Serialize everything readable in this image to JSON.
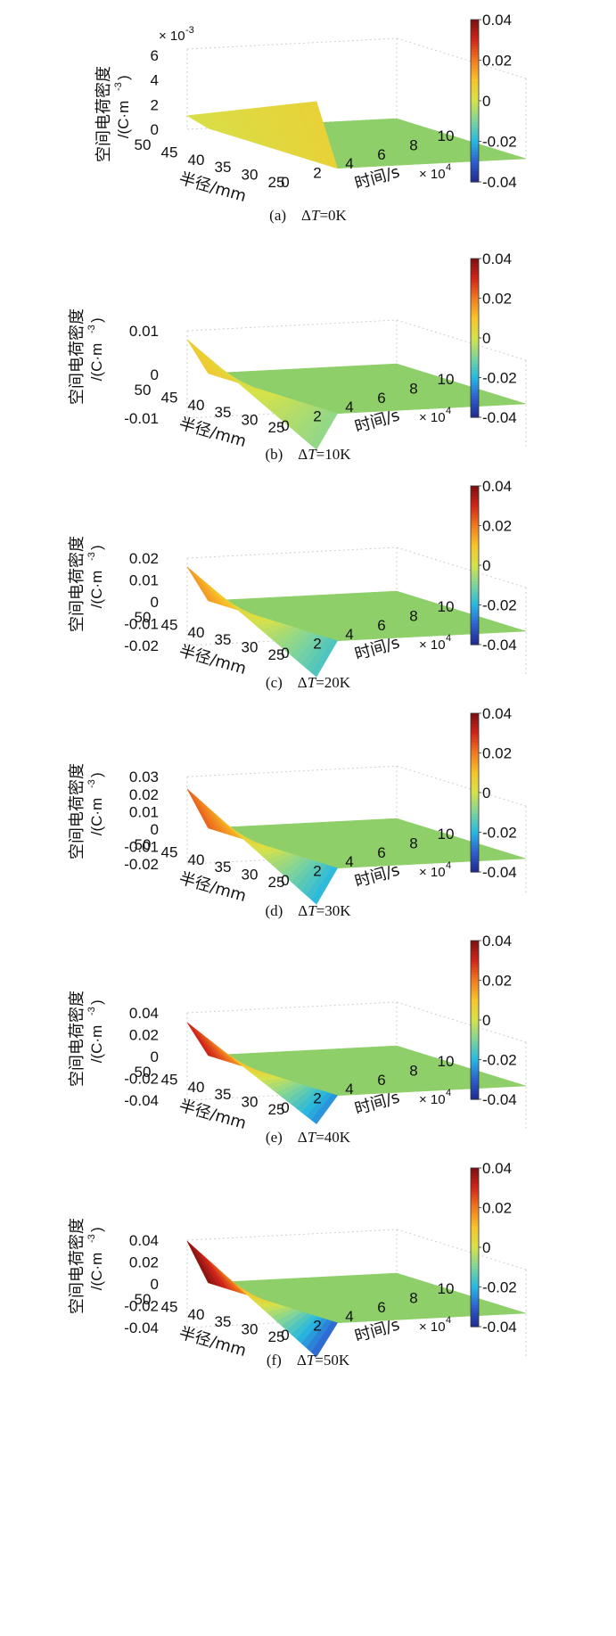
{
  "chart_data": [
    {
      "type": "surface3d",
      "label": "(a)",
      "delta_t_value": "0K",
      "zlabel_line1": "空间电荷密度",
      "zlabel_line2": "/(C·m",
      "zlabel_exp": "-3",
      "zlabel_close": ")",
      "xlabel": "时间/s",
      "ylabel": "半径/mm",
      "x_multiplier": "× 10",
      "x_multiplier_exp": "4",
      "z_multiplier": "× 10",
      "z_multiplier_exp": "-3",
      "x_ticks": [
        "0",
        "2",
        "4",
        "6",
        "8",
        "10"
      ],
      "y_ticks": [
        "50",
        "45",
        "40",
        "35",
        "30",
        "25"
      ],
      "z_ticks": [
        "6",
        "4",
        "2",
        "0"
      ],
      "zlim": [
        0,
        0.0065
      ],
      "colorbar_ticks": [
        "0.04",
        "0.02",
        "0",
        "-0.02",
        "-0.04"
      ],
      "colorbar_range": [
        -0.04,
        0.04
      ],
      "surface": {
        "time_range": [
          0,
          10
        ],
        "radius_range": [
          25,
          50
        ],
        "outer_edge_at_t0": {
          "r50": 0.0011,
          "r25": 0.0055
        },
        "steady_value": 0.0
      }
    },
    {
      "type": "surface3d",
      "label": "(b)",
      "delta_t_value": "10K",
      "zlabel_line1": "空间电荷密度",
      "zlabel_line2": "/(C·m",
      "zlabel_exp": "-3",
      "zlabel_close": ")",
      "xlabel": "时间/s",
      "ylabel": "半径/mm",
      "x_multiplier": "× 10",
      "x_multiplier_exp": "4",
      "x_ticks": [
        "0",
        "2",
        "4",
        "6",
        "8",
        "10"
      ],
      "y_ticks": [
        "50",
        "45",
        "40",
        "35",
        "30",
        "25"
      ],
      "z_ticks": [
        "0.01",
        "0",
        "-0.01"
      ],
      "zlim": [
        -0.01,
        0.01
      ],
      "colorbar_ticks": [
        "0.04",
        "0.02",
        "0",
        "-0.02",
        "-0.04"
      ],
      "colorbar_range": [
        -0.04,
        0.04
      ],
      "surface": {
        "time_range": [
          0,
          10
        ],
        "radius_range": [
          25,
          50
        ],
        "outer_edge_at_t0": {
          "r50": 0.008,
          "r25": -0.008
        },
        "steady_value": 0.0
      }
    },
    {
      "type": "surface3d",
      "label": "(c)",
      "delta_t_value": "20K",
      "zlabel_line1": "空间电荷密度",
      "zlabel_line2": "/(C·m",
      "zlabel_exp": "-3",
      "zlabel_close": ")",
      "xlabel": "时间/s",
      "ylabel": "半径/mm",
      "x_multiplier": "× 10",
      "x_multiplier_exp": "4",
      "x_ticks": [
        "0",
        "2",
        "4",
        "6",
        "8",
        "10"
      ],
      "y_ticks": [
        "50",
        "45",
        "40",
        "35",
        "30",
        "25"
      ],
      "z_ticks": [
        "0.02",
        "0.01",
        "0",
        "-0.01",
        "-0.02"
      ],
      "zlim": [
        -0.02,
        0.02
      ],
      "colorbar_ticks": [
        "0.04",
        "0.02",
        "0",
        "-0.02",
        "-0.04"
      ],
      "colorbar_range": [
        -0.04,
        0.04
      ],
      "surface": {
        "time_range": [
          0,
          10
        ],
        "radius_range": [
          25,
          50
        ],
        "outer_edge_at_t0": {
          "r50": 0.016,
          "r25": -0.016
        },
        "steady_value": 0.0
      }
    },
    {
      "type": "surface3d",
      "label": "(d)",
      "delta_t_value": "30K",
      "zlabel_line1": "空间电荷密度",
      "zlabel_line2": "/(C·m",
      "zlabel_exp": "-3",
      "zlabel_close": ")",
      "xlabel": "时间/s",
      "ylabel": "半径/mm",
      "x_multiplier": "× 10",
      "x_multiplier_exp": "4",
      "x_ticks": [
        "0",
        "2",
        "4",
        "6",
        "8",
        "10"
      ],
      "y_ticks": [
        "50",
        "45",
        "40",
        "35",
        "30",
        "25"
      ],
      "z_ticks": [
        "0.03",
        "0.02",
        "0.01",
        "0",
        "-0.01",
        "-0.02"
      ],
      "zlim": [
        -0.02,
        0.03
      ],
      "colorbar_ticks": [
        "0.04",
        "0.02",
        "0",
        "-0.02",
        "-0.04"
      ],
      "colorbar_range": [
        -0.04,
        0.04
      ],
      "surface": {
        "time_range": [
          0,
          10
        ],
        "radius_range": [
          25,
          50
        ],
        "outer_edge_at_t0": {
          "r50": 0.023,
          "r25": -0.02
        },
        "steady_value": 0.0
      }
    },
    {
      "type": "surface3d",
      "label": "(e)",
      "delta_t_value": "40K",
      "zlabel_line1": "空间电荷密度",
      "zlabel_line2": "/(C·m",
      "zlabel_exp": "-3",
      "zlabel_close": ")",
      "xlabel": "时间/s",
      "ylabel": "半径/mm",
      "x_multiplier": "× 10",
      "x_multiplier_exp": "4",
      "x_ticks": [
        "0",
        "2",
        "4",
        "6",
        "8",
        "10"
      ],
      "y_ticks": [
        "50",
        "45",
        "40",
        "35",
        "30",
        "25"
      ],
      "z_ticks": [
        "0.04",
        "0.02",
        "0",
        "-0.02",
        "-0.04"
      ],
      "zlim": [
        -0.04,
        0.04
      ],
      "colorbar_ticks": [
        "0.04",
        "0.02",
        "0",
        "-0.02",
        "-0.04"
      ],
      "colorbar_range": [
        -0.04,
        0.04
      ],
      "surface": {
        "time_range": [
          0,
          10
        ],
        "radius_range": [
          25,
          50
        ],
        "outer_edge_at_t0": {
          "r50": 0.031,
          "r25": -0.025
        },
        "steady_value": 0.0
      }
    },
    {
      "type": "surface3d",
      "label": "(f)",
      "delta_t_value": "50K",
      "zlabel_line1": "空间电荷密度",
      "zlabel_line2": "/(C·m",
      "zlabel_exp": "-3",
      "zlabel_close": ")",
      "xlabel": "时间/s",
      "ylabel": "半径/mm",
      "x_multiplier": "× 10",
      "x_multiplier_exp": "4",
      "x_ticks": [
        "0",
        "2",
        "4",
        "6",
        "8",
        "10"
      ],
      "y_ticks": [
        "50",
        "45",
        "40",
        "35",
        "30",
        "25"
      ],
      "z_ticks": [
        "0.04",
        "0.02",
        "0",
        "-0.02",
        "-0.04"
      ],
      "zlim": [
        -0.04,
        0.04
      ],
      "colorbar_ticks": [
        "0.04",
        "0.02",
        "0",
        "-0.02",
        "-0.04"
      ],
      "colorbar_range": [
        -0.04,
        0.04
      ],
      "surface": {
        "time_range": [
          0,
          10
        ],
        "radius_range": [
          25,
          50
        ],
        "outer_edge_at_t0": {
          "r50": 0.039,
          "r25": -0.03
        },
        "steady_value": 0.0
      }
    }
  ],
  "colormap": [
    "#1f2a8c",
    "#2f5fd0",
    "#27b8e0",
    "#7fd49a",
    "#d6e24a",
    "#f7c42a",
    "#f07a20",
    "#d0251a",
    "#7a1010"
  ],
  "flat_color": "#8fcf6a"
}
